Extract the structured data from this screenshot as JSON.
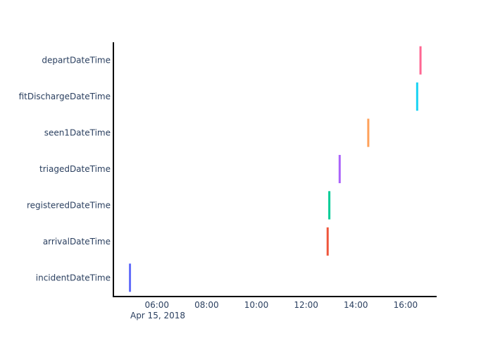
{
  "chart_data": {
    "type": "timeline",
    "title": "",
    "xlabel": "",
    "ylabel": "",
    "date": "2018-04-15",
    "date_label": "Apr 15, 2018",
    "x_ticks": [
      "06:00",
      "08:00",
      "10:00",
      "12:00",
      "14:00",
      "16:00"
    ],
    "xlim": [
      "04:15",
      "17:15"
    ],
    "grid": false,
    "legend": "none",
    "events": [
      {
        "label": "incidentDateTime",
        "time": "04:55",
        "color": "#636efa"
      },
      {
        "label": "arrivalDateTime",
        "time": "12:52",
        "color": "#ef553b"
      },
      {
        "label": "registeredDateTime",
        "time": "12:56",
        "color": "#00cc96"
      },
      {
        "label": "triagedDateTime",
        "time": "13:21",
        "color": "#ab63fa"
      },
      {
        "label": "seen1DateTime",
        "time": "14:30",
        "color": "#ffa15a"
      },
      {
        "label": "fitDischargeDateTime",
        "time": "16:28",
        "color": "#19d3f3"
      },
      {
        "label": "departDateTime",
        "time": "16:36",
        "color": "#ff6692"
      }
    ]
  }
}
